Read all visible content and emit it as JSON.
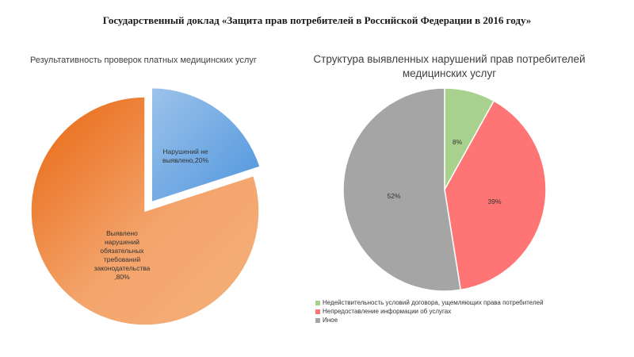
{
  "header": {
    "title": "Государственный доклад «Защита прав потребителей в Российской Федерации в 2016 году»"
  },
  "chart_data": [
    {
      "type": "pie",
      "title": "Результативность проверок платных медицинских услуг",
      "series": [
        {
          "labels": [
            "Нарушений не выявлено",
            "Выявлено нарушений обязательных требований законодательства"
          ],
          "display_labels": [
            "Нарушений не выявлено,20%",
            "Выявлено нарушений обязательных требований законодательства ,80%"
          ],
          "values": [
            20,
            80
          ],
          "colors": [
            "#6aa6e0",
            "#f07a22"
          ]
        }
      ]
    },
    {
      "type": "pie",
      "title": "Структура выявленных нарушений прав потребителей медицинских услуг",
      "series": [
        {
          "labels": [
            "Недействительность условий договора, ущемляющих права потребителей",
            "Непредоставление информации об услугах",
            "Иное"
          ],
          "display_labels": [
            "8%",
            "39%",
            "52%"
          ],
          "values": [
            8,
            39,
            52
          ],
          "colors": [
            "#a9d18e",
            "#ff7575",
            "#a5a5a5"
          ]
        }
      ],
      "legend": "bottom-left"
    }
  ]
}
